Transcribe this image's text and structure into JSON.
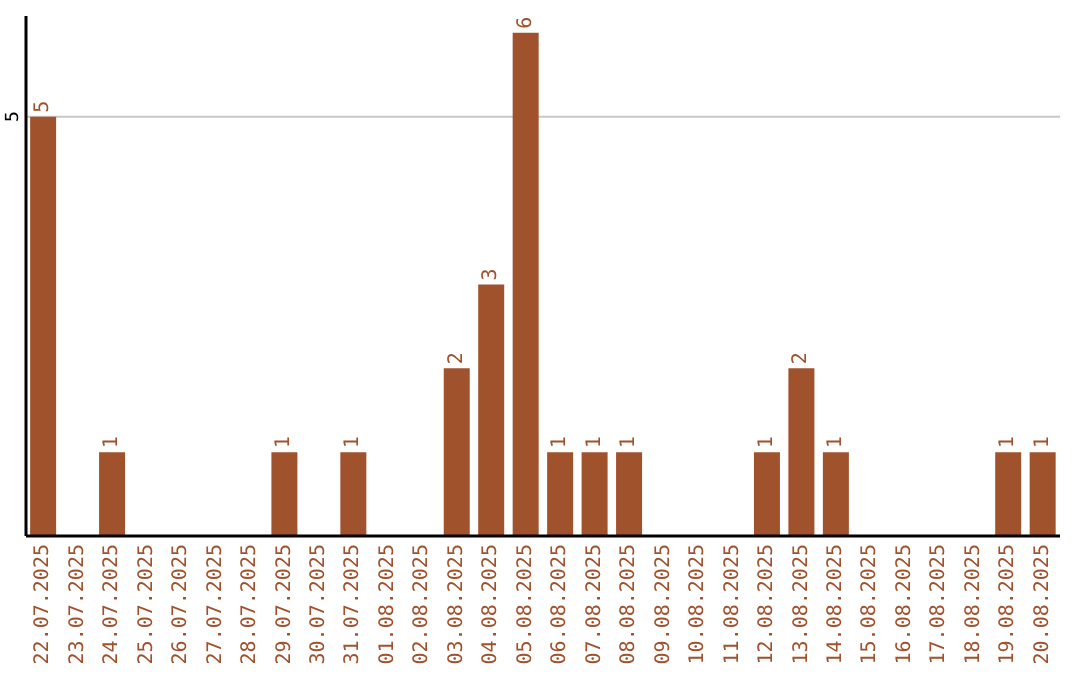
{
  "chart_data": {
    "type": "bar",
    "categories": [
      "22.07.2025",
      "23.07.2025",
      "24.07.2025",
      "25.07.2025",
      "26.07.2025",
      "27.07.2025",
      "28.07.2025",
      "29.07.2025",
      "30.07.2025",
      "31.07.2025",
      "01.08.2025",
      "02.08.2025",
      "03.08.2025",
      "04.08.2025",
      "05.08.2025",
      "06.08.2025",
      "07.08.2025",
      "08.08.2025",
      "09.08.2025",
      "10.08.2025",
      "11.08.2025",
      "12.08.2025",
      "13.08.2025",
      "14.08.2025",
      "15.08.2025",
      "16.08.2025",
      "17.08.2025",
      "18.08.2025",
      "19.08.2025",
      "20.08.2025"
    ],
    "values": [
      5,
      0,
      1,
      0,
      0,
      0,
      0,
      1,
      0,
      1,
      0,
      0,
      2,
      3,
      6,
      1,
      1,
      1,
      0,
      0,
      0,
      1,
      2,
      1,
      0,
      0,
      0,
      0,
      1,
      1
    ],
    "value_labels": [
      "5",
      null,
      "1",
      null,
      null,
      null,
      null,
      "1",
      null,
      "1",
      null,
      null,
      "2",
      "3",
      "6",
      "1",
      "1",
      "1",
      null,
      null,
      null,
      "1",
      "2",
      "1",
      null,
      null,
      null,
      null,
      "1",
      "1"
    ],
    "color": "#a0522d",
    "ylim": [
      0,
      6.2
    ],
    "yticks": [
      5
    ],
    "grid": "y"
  }
}
